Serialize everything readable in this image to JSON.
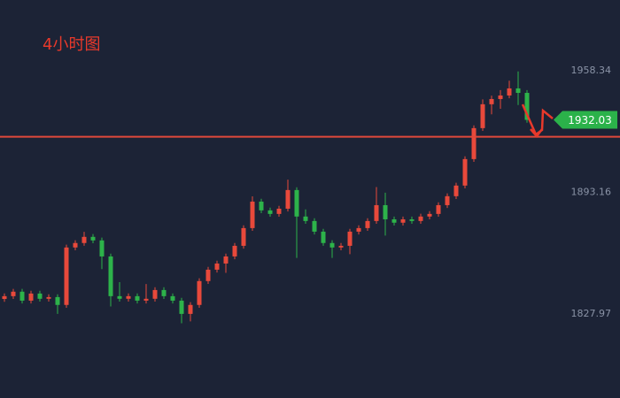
{
  "chart_data": {
    "type": "candlestick",
    "title": "4小时图",
    "ylim": [
      1782.9,
      1996.3
    ],
    "yticks": [
      1827.97,
      1893.16,
      1958.34
    ],
    "hline": 1923,
    "up_color": "#e8493b",
    "down_color": "#2db34a",
    "line_color": "#e0493b",
    "open": [
      1836.0,
      1837.5,
      1839.9,
      1835.1,
      1838.9,
      1836.1,
      1837.0,
      1832.8,
      1863.6,
      1866.0,
      1869.3,
      1867.4,
      1858.8,
      1837.5,
      1836.1,
      1837.5,
      1835.1,
      1836.1,
      1840.8,
      1837.5,
      1835.1,
      1828.0,
      1832.8,
      1845.6,
      1851.7,
      1855.0,
      1858.8,
      1864.5,
      1874.0,
      1888.2,
      1883.5,
      1881.6,
      1884.4,
      1894.4,
      1880.2,
      1877.8,
      1872.1,
      1866.0,
      1863.6,
      1864.5,
      1872.1,
      1874.0,
      1877.8,
      1886.3,
      1878.7,
      1876.9,
      1878.7,
      1877.8,
      1880.2,
      1881.6,
      1886.3,
      1891.1,
      1896.8,
      1911.0,
      1927.6,
      1940.4,
      1943.2,
      1945.1,
      1948.9,
      1946.5
    ],
    "high": [
      1839.0,
      1841.4,
      1841.4,
      1840.4,
      1840.4,
      1838.5,
      1838.5,
      1865.1,
      1867.5,
      1872.0,
      1870.8,
      1868.9,
      1860.3,
      1845.0,
      1839.0,
      1839.0,
      1844.0,
      1842.3,
      1842.3,
      1839.0,
      1836.6,
      1834.3,
      1847.1,
      1853.2,
      1856.5,
      1860.3,
      1866.0,
      1875.5,
      1891.0,
      1889.7,
      1885.0,
      1885.9,
      1900.0,
      1895.9,
      1884.0,
      1879.3,
      1873.6,
      1867.5,
      1866.0,
      1873.6,
      1875.5,
      1879.3,
      1896.0,
      1893.0,
      1880.2,
      1880.2,
      1880.2,
      1881.7,
      1883.1,
      1887.8,
      1892.6,
      1898.3,
      1912.5,
      1929.1,
      1943.0,
      1945.0,
      1948.0,
      1953.0,
      1958.0,
      1948.0
    ],
    "low": [
      1834.5,
      1836.0,
      1833.6,
      1833.6,
      1834.6,
      1834.6,
      1828.0,
      1831.3,
      1862.1,
      1864.5,
      1865.9,
      1852.0,
      1832.0,
      1834.6,
      1834.6,
      1833.6,
      1833.6,
      1834.6,
      1836.0,
      1833.6,
      1823.0,
      1824.0,
      1831.3,
      1844.1,
      1850.2,
      1850.0,
      1857.3,
      1863.0,
      1872.5,
      1882.0,
      1880.1,
      1880.1,
      1882.9,
      1858.0,
      1876.3,
      1870.6,
      1864.5,
      1858.0,
      1862.1,
      1860.0,
      1870.6,
      1872.5,
      1876.3,
      1870.0,
      1875.4,
      1875.4,
      1876.3,
      1876.3,
      1878.7,
      1880.1,
      1884.8,
      1889.6,
      1895.3,
      1909.5,
      1926.1,
      1935.0,
      1938.0,
      1943.6,
      1940.0,
      1930.5
    ],
    "close": [
      1837.5,
      1839.9,
      1835.1,
      1838.9,
      1836.1,
      1837.0,
      1832.8,
      1863.6,
      1866.0,
      1869.3,
      1867.4,
      1858.8,
      1837.5,
      1836.1,
      1837.5,
      1835.1,
      1836.1,
      1840.8,
      1837.5,
      1835.1,
      1828.0,
      1832.8,
      1845.6,
      1851.7,
      1855.0,
      1858.8,
      1864.5,
      1874.0,
      1888.2,
      1883.5,
      1881.6,
      1884.4,
      1894.4,
      1880.2,
      1877.8,
      1872.1,
      1866.0,
      1863.6,
      1864.5,
      1872.1,
      1874.0,
      1877.8,
      1886.3,
      1878.7,
      1876.9,
      1878.7,
      1877.8,
      1880.2,
      1881.6,
      1886.3,
      1891.1,
      1896.8,
      1911.0,
      1927.6,
      1940.4,
      1943.2,
      1945.1,
      1948.9,
      1946.5,
      1932.03
    ]
  }
}
